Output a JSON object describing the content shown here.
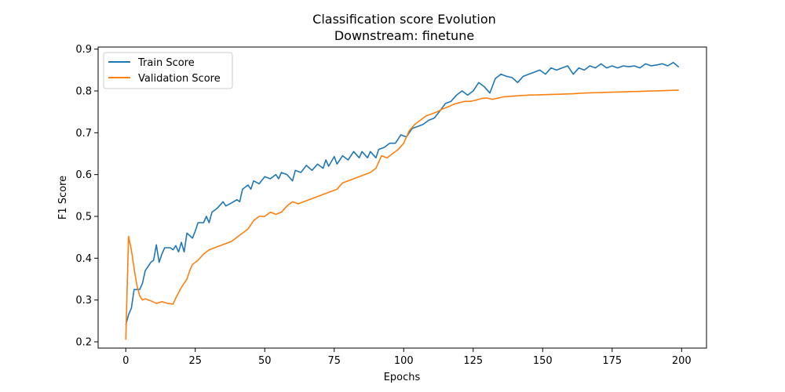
{
  "chart_data": {
    "type": "line",
    "title": "Classification score Evolution",
    "subtitle": "Downstream: finetune",
    "xlabel": "Epochs",
    "ylabel": "F1 Score",
    "xlim": [
      -9.95,
      208.95
    ],
    "ylim": [
      0.185,
      0.905
    ],
    "xticks": [
      0,
      25,
      50,
      75,
      100,
      125,
      150,
      175,
      200
    ],
    "yticks": [
      0.2,
      0.3,
      0.4,
      0.5,
      0.6,
      0.7,
      0.8,
      0.9
    ],
    "grid": false,
    "legend_position": "top-left",
    "series": [
      {
        "name": "Train Score",
        "color": "#1f77b4",
        "keypoints": [
          [
            0,
            0.24
          ],
          [
            1,
            0.265
          ],
          [
            2,
            0.28
          ],
          [
            3,
            0.325
          ],
          [
            5,
            0.325
          ],
          [
            6,
            0.34
          ],
          [
            7,
            0.37
          ],
          [
            9,
            0.39
          ],
          [
            10,
            0.395
          ],
          [
            11,
            0.432
          ],
          [
            12,
            0.39
          ],
          [
            13,
            0.41
          ],
          [
            14,
            0.425
          ],
          [
            16,
            0.425
          ],
          [
            17,
            0.42
          ],
          [
            18,
            0.43
          ],
          [
            19,
            0.415
          ],
          [
            20,
            0.438
          ],
          [
            21,
            0.415
          ],
          [
            22,
            0.46
          ],
          [
            24,
            0.448
          ],
          [
            25,
            0.465
          ],
          [
            26,
            0.485
          ],
          [
            28,
            0.485
          ],
          [
            29,
            0.5
          ],
          [
            30,
            0.485
          ],
          [
            31,
            0.51
          ],
          [
            33,
            0.52
          ],
          [
            35,
            0.535
          ],
          [
            36,
            0.525
          ],
          [
            38,
            0.532
          ],
          [
            40,
            0.54
          ],
          [
            41,
            0.535
          ],
          [
            42,
            0.565
          ],
          [
            44,
            0.575
          ],
          [
            45,
            0.565
          ],
          [
            46,
            0.585
          ],
          [
            48,
            0.578
          ],
          [
            50,
            0.595
          ],
          [
            52,
            0.59
          ],
          [
            54,
            0.6
          ],
          [
            55,
            0.59
          ],
          [
            56,
            0.605
          ],
          [
            58,
            0.6
          ],
          [
            60,
            0.585
          ],
          [
            61,
            0.61
          ],
          [
            63,
            0.605
          ],
          [
            65,
            0.622
          ],
          [
            67,
            0.61
          ],
          [
            69,
            0.625
          ],
          [
            71,
            0.615
          ],
          [
            72,
            0.635
          ],
          [
            73,
            0.62
          ],
          [
            75,
            0.643
          ],
          [
            76,
            0.625
          ],
          [
            78,
            0.645
          ],
          [
            80,
            0.635
          ],
          [
            82,
            0.655
          ],
          [
            84,
            0.64
          ],
          [
            85,
            0.655
          ],
          [
            87,
            0.64
          ],
          [
            88,
            0.655
          ],
          [
            90,
            0.64
          ],
          [
            91,
            0.66
          ],
          [
            93,
            0.665
          ],
          [
            95,
            0.675
          ],
          [
            97,
            0.675
          ],
          [
            99,
            0.695
          ],
          [
            101,
            0.69
          ],
          [
            103,
            0.71
          ],
          [
            105,
            0.715
          ],
          [
            107,
            0.72
          ],
          [
            109,
            0.73
          ],
          [
            111,
            0.735
          ],
          [
            113,
            0.752
          ],
          [
            115,
            0.77
          ],
          [
            117,
            0.775
          ],
          [
            119,
            0.79
          ],
          [
            121,
            0.8
          ],
          [
            123,
            0.79
          ],
          [
            125,
            0.8
          ],
          [
            127,
            0.82
          ],
          [
            129,
            0.81
          ],
          [
            131,
            0.795
          ],
          [
            133,
            0.83
          ],
          [
            135,
            0.84
          ],
          [
            137,
            0.835
          ],
          [
            139,
            0.832
          ],
          [
            141,
            0.82
          ],
          [
            143,
            0.835
          ],
          [
            145,
            0.84
          ],
          [
            147,
            0.845
          ],
          [
            149,
            0.85
          ],
          [
            151,
            0.84
          ],
          [
            153,
            0.855
          ],
          [
            155,
            0.85
          ],
          [
            157,
            0.855
          ],
          [
            159,
            0.86
          ],
          [
            161,
            0.84
          ],
          [
            163,
            0.855
          ],
          [
            165,
            0.85
          ],
          [
            167,
            0.86
          ],
          [
            169,
            0.855
          ],
          [
            171,
            0.865
          ],
          [
            173,
            0.855
          ],
          [
            175,
            0.86
          ],
          [
            177,
            0.855
          ],
          [
            179,
            0.86
          ],
          [
            181,
            0.858
          ],
          [
            183,
            0.86
          ],
          [
            185,
            0.855
          ],
          [
            187,
            0.865
          ],
          [
            189,
            0.86
          ],
          [
            191,
            0.862
          ],
          [
            193,
            0.865
          ],
          [
            195,
            0.86
          ],
          [
            197,
            0.868
          ],
          [
            199,
            0.857
          ]
        ]
      },
      {
        "name": "Validation Score",
        "color": "#ff7f0e",
        "keypoints": [
          [
            0,
            0.205
          ],
          [
            1,
            0.452
          ],
          [
            2,
            0.42
          ],
          [
            3,
            0.375
          ],
          [
            4,
            0.335
          ],
          [
            5,
            0.31
          ],
          [
            6,
            0.3
          ],
          [
            7,
            0.303
          ],
          [
            9,
            0.298
          ],
          [
            11,
            0.292
          ],
          [
            13,
            0.296
          ],
          [
            15,
            0.292
          ],
          [
            17,
            0.29
          ],
          [
            18,
            0.305
          ],
          [
            20,
            0.33
          ],
          [
            21,
            0.34
          ],
          [
            22,
            0.35
          ],
          [
            23,
            0.37
          ],
          [
            24,
            0.385
          ],
          [
            26,
            0.395
          ],
          [
            28,
            0.41
          ],
          [
            30,
            0.42
          ],
          [
            32,
            0.425
          ],
          [
            34,
            0.43
          ],
          [
            36,
            0.435
          ],
          [
            38,
            0.44
          ],
          [
            40,
            0.45
          ],
          [
            42,
            0.46
          ],
          [
            44,
            0.47
          ],
          [
            46,
            0.49
          ],
          [
            48,
            0.5
          ],
          [
            50,
            0.5
          ],
          [
            52,
            0.51
          ],
          [
            54,
            0.505
          ],
          [
            56,
            0.51
          ],
          [
            58,
            0.525
          ],
          [
            60,
            0.535
          ],
          [
            62,
            0.53
          ],
          [
            64,
            0.535
          ],
          [
            66,
            0.54
          ],
          [
            68,
            0.545
          ],
          [
            70,
            0.55
          ],
          [
            72,
            0.555
          ],
          [
            74,
            0.56
          ],
          [
            76,
            0.565
          ],
          [
            78,
            0.58
          ],
          [
            80,
            0.585
          ],
          [
            82,
            0.59
          ],
          [
            84,
            0.595
          ],
          [
            86,
            0.6
          ],
          [
            88,
            0.605
          ],
          [
            90,
            0.615
          ],
          [
            92,
            0.645
          ],
          [
            94,
            0.64
          ],
          [
            96,
            0.65
          ],
          [
            98,
            0.66
          ],
          [
            100,
            0.675
          ],
          [
            102,
            0.705
          ],
          [
            104,
            0.72
          ],
          [
            106,
            0.73
          ],
          [
            108,
            0.74
          ],
          [
            110,
            0.745
          ],
          [
            112,
            0.75
          ],
          [
            114,
            0.757
          ],
          [
            116,
            0.762
          ],
          [
            118,
            0.768
          ],
          [
            120,
            0.772
          ],
          [
            122,
            0.775
          ],
          [
            124,
            0.775
          ],
          [
            126,
            0.778
          ],
          [
            128,
            0.782
          ],
          [
            130,
            0.783
          ],
          [
            132,
            0.78
          ],
          [
            134,
            0.783
          ],
          [
            136,
            0.786
          ],
          [
            140,
            0.788
          ],
          [
            145,
            0.79
          ],
          [
            150,
            0.791
          ],
          [
            155,
            0.792
          ],
          [
            160,
            0.793
          ],
          [
            165,
            0.795
          ],
          [
            170,
            0.796
          ],
          [
            175,
            0.797
          ],
          [
            180,
            0.798
          ],
          [
            185,
            0.799
          ],
          [
            190,
            0.8
          ],
          [
            195,
            0.801
          ],
          [
            199,
            0.802
          ]
        ]
      }
    ]
  }
}
